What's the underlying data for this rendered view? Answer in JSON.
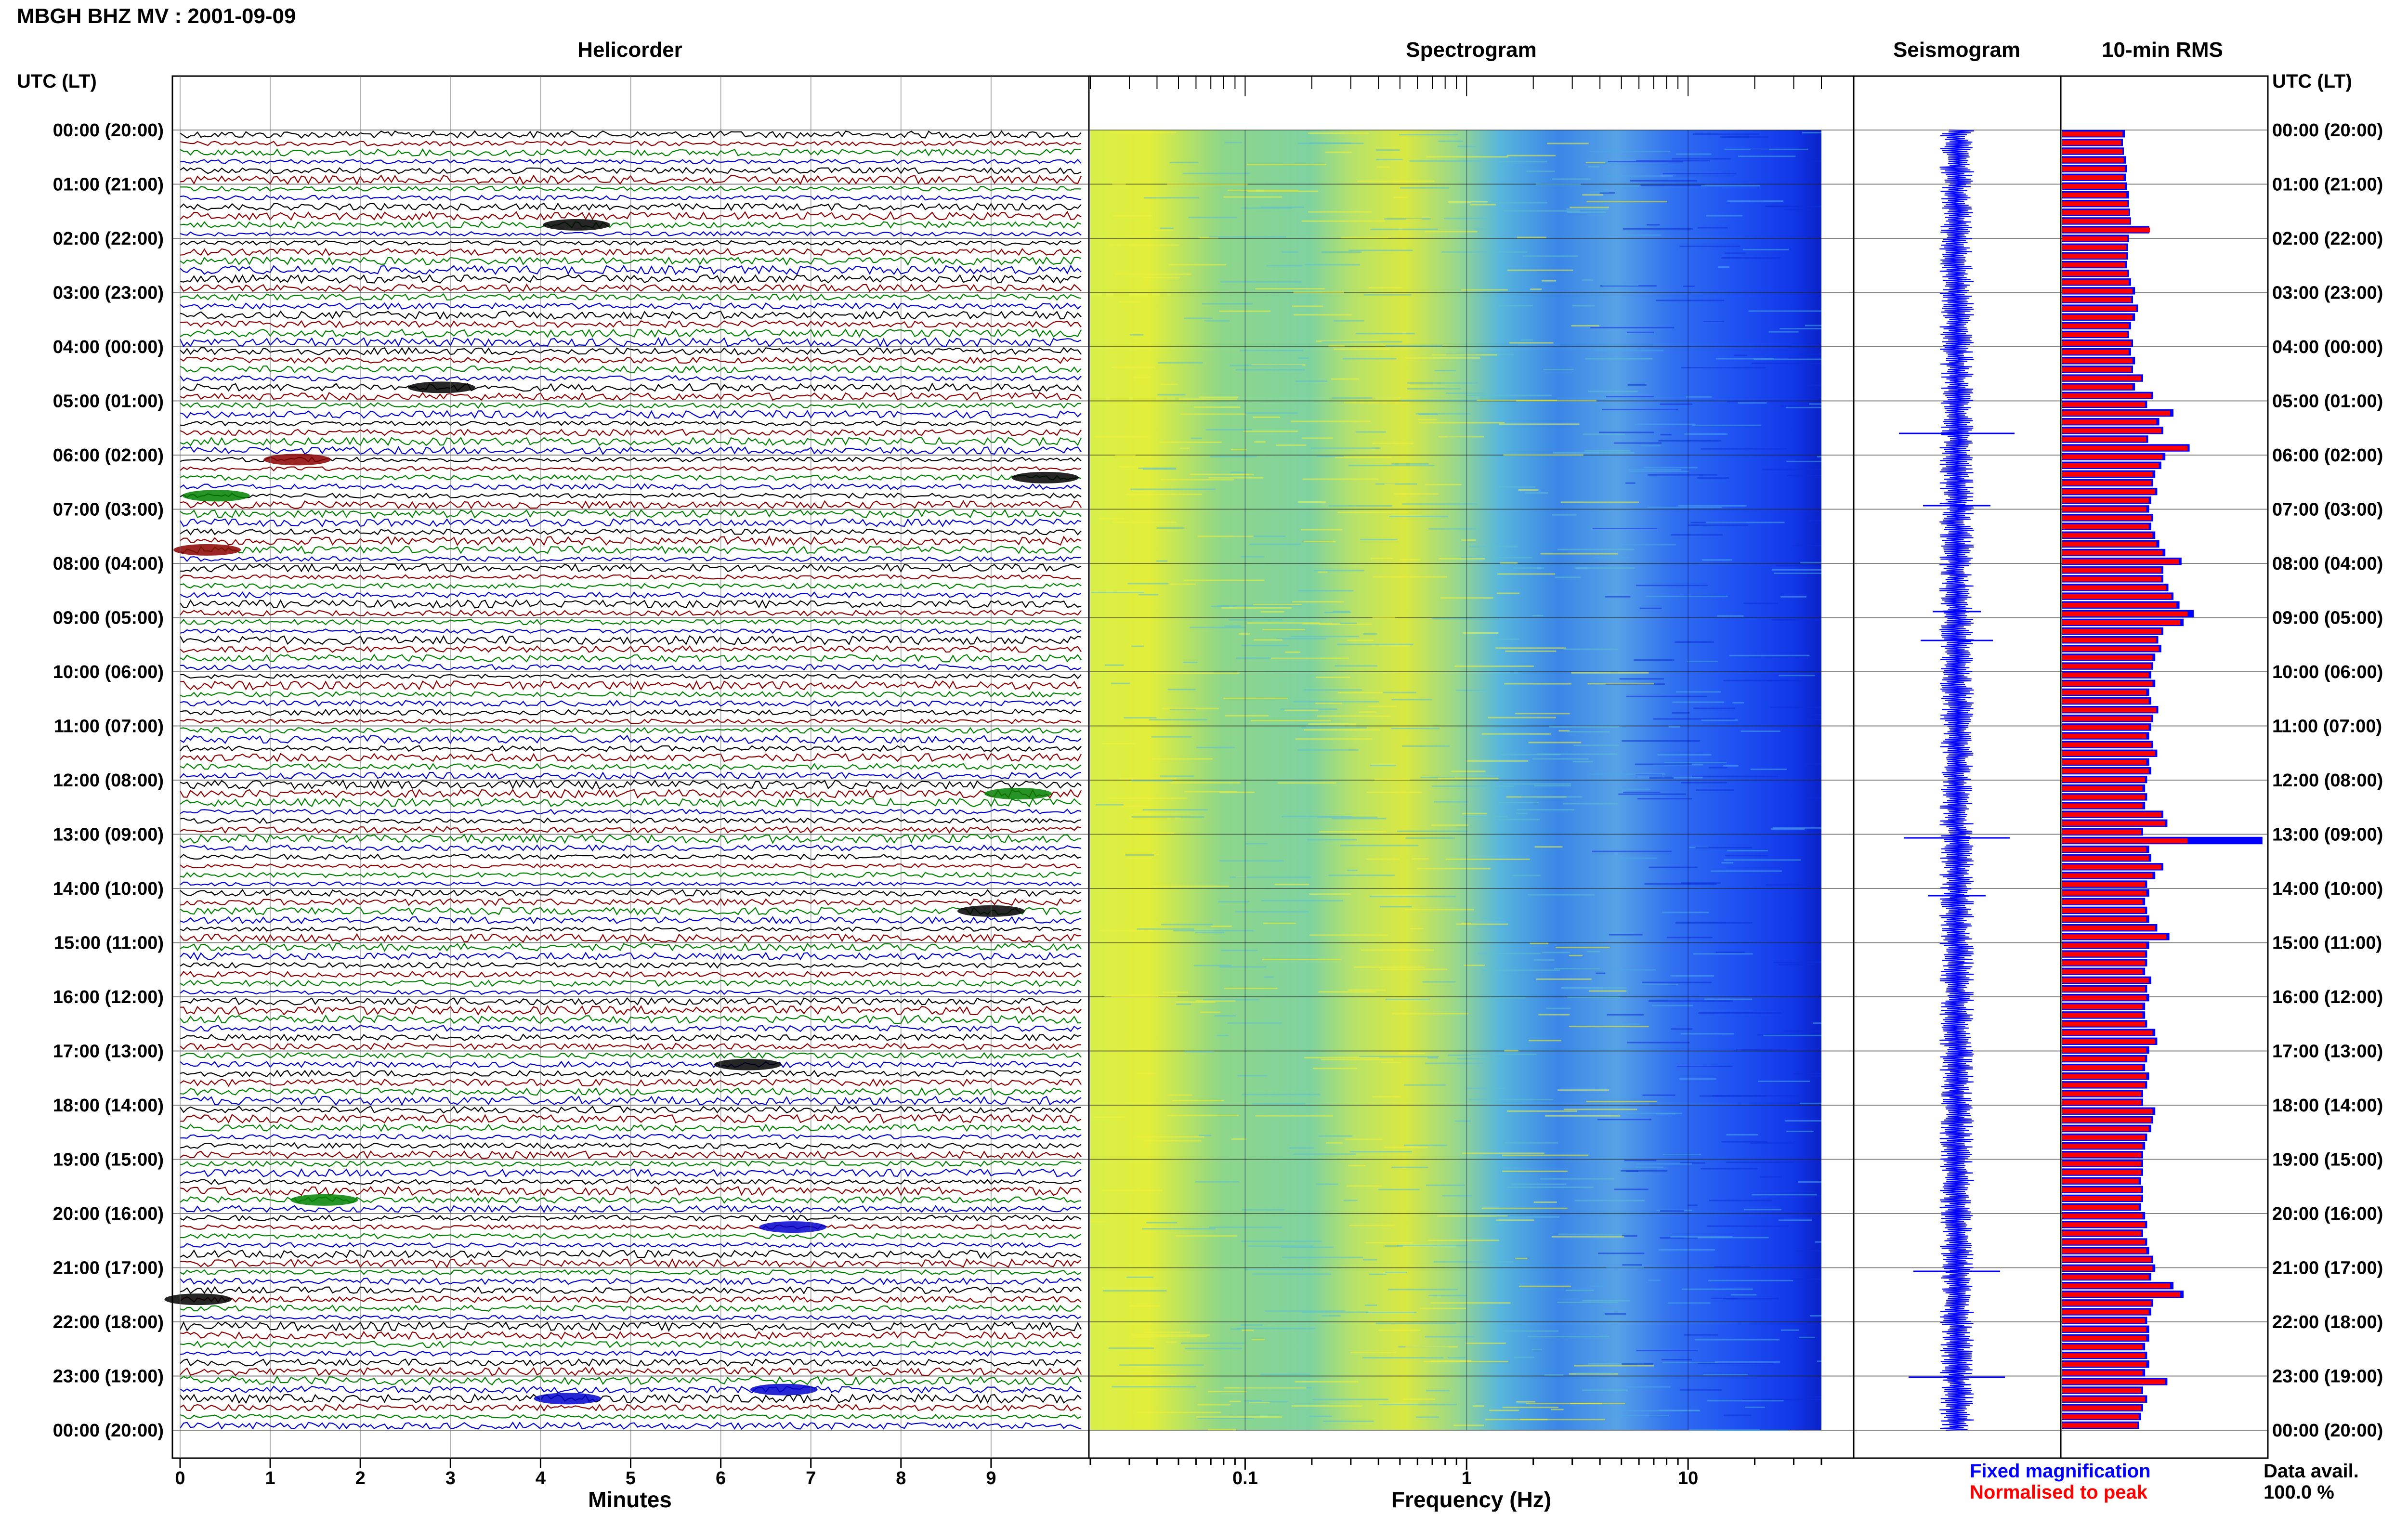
{
  "title": "MBGH BHZ MV : 2001-09-09",
  "panels": {
    "helicorder": "Helicorder",
    "spectrogram": "Spectrogram",
    "seismogram": "Seismogram",
    "rms": "10-min RMS"
  },
  "axis": {
    "left_header": "UTC (LT)",
    "right_header": "UTC (LT)",
    "minutes_label": "Minutes",
    "frequency_label": "Frequency (Hz)"
  },
  "legend": {
    "fixed": "Fixed magnification",
    "normalised": "Normalised to peak",
    "fixed_color": "#0000ff",
    "normalised_color": "#ff0000"
  },
  "data_avail": {
    "label": "Data avail.",
    "value": "100.0 %"
  },
  "colors": {
    "trace_cycle": [
      "#000000",
      "#8b0000",
      "#008000",
      "#0000cd"
    ]
  },
  "chart_data": {
    "type": "heatmap",
    "time_labels": [
      "00:00 (20:00)",
      "01:00 (21:00)",
      "02:00 (22:00)",
      "03:00 (23:00)",
      "04:00 (00:00)",
      "05:00 (01:00)",
      "06:00 (02:00)",
      "07:00 (03:00)",
      "08:00 (04:00)",
      "09:00 (05:00)",
      "10:00 (06:00)",
      "11:00 (07:00)",
      "12:00 (08:00)",
      "13:00 (09:00)",
      "14:00 (10:00)",
      "15:00 (11:00)",
      "16:00 (12:00)",
      "17:00 (13:00)",
      "18:00 (14:00)",
      "19:00 (15:00)",
      "20:00 (16:00)",
      "21:00 (17:00)",
      "22:00 (18:00)",
      "23:00 (19:00)",
      "00:00 (20:00)"
    ],
    "minutes_ticks": [
      "0",
      "1",
      "2",
      "3",
      "4",
      "5",
      "6",
      "7",
      "8",
      "9"
    ],
    "freq_ticks": [
      "0.1",
      "1",
      "10"
    ],
    "freq_range": [
      0.02,
      40
    ],
    "rms_fixed": [
      0.62,
      0.6,
      0.61,
      0.63,
      0.64,
      0.63,
      0.64,
      0.66,
      0.66,
      0.67,
      0.68,
      0.86,
      0.66,
      0.65,
      0.65,
      0.64,
      0.66,
      0.68,
      0.72,
      0.7,
      0.75,
      0.72,
      0.68,
      0.66,
      0.7,
      0.68,
      0.72,
      0.7,
      0.8,
      0.72,
      0.9,
      0.84,
      1.1,
      0.96,
      1.0,
      0.85,
      1.26,
      1.02,
      0.98,
      0.92,
      0.9,
      0.94,
      0.88,
      0.86,
      0.9,
      0.88,
      0.92,
      0.96,
      1.02,
      1.18,
      1.0,
      1.0,
      1.05,
      1.1,
      1.16,
      1.3,
      1.2,
      1.0,
      0.95,
      0.98,
      0.92,
      0.9,
      0.88,
      0.92,
      0.86,
      0.88,
      0.95,
      0.9,
      0.88,
      0.86,
      0.9,
      0.94,
      0.86,
      0.88,
      0.84,
      0.82,
      0.84,
      0.82,
      1.0,
      1.04,
      0.8,
      1.98,
      0.86,
      0.88,
      1.0,
      0.92,
      0.84,
      0.86,
      0.82,
      0.84,
      0.86,
      0.94,
      1.06,
      0.86,
      0.84,
      0.84,
      0.82,
      0.88,
      0.84,
      0.86,
      0.82,
      0.82,
      0.84,
      0.92,
      0.94,
      0.86,
      0.84,
      0.82,
      0.86,
      0.84,
      0.8,
      0.8,
      0.92,
      0.9,
      0.88,
      0.84,
      0.82,
      0.8,
      0.8,
      0.8,
      0.78,
      0.8,
      0.8,
      0.78,
      0.82,
      0.84,
      0.8,
      0.84,
      0.86,
      0.9,
      0.92,
      0.88,
      1.1,
      1.2,
      0.9,
      0.88,
      0.84,
      0.86,
      0.86,
      0.82,
      0.84,
      0.86,
      0.82,
      1.04,
      0.8,
      0.84,
      0.8,
      0.78,
      0.76
    ],
    "rms_normalised": [
      0.48,
      0.47,
      0.48,
      0.49,
      0.5,
      0.49,
      0.5,
      0.51,
      0.52,
      0.53,
      0.54,
      0.7,
      0.52,
      0.51,
      0.51,
      0.5,
      0.52,
      0.53,
      0.56,
      0.55,
      0.59,
      0.56,
      0.53,
      0.52,
      0.55,
      0.53,
      0.56,
      0.55,
      0.63,
      0.56,
      0.71,
      0.66,
      0.86,
      0.75,
      0.79,
      0.67,
      1.0,
      0.8,
      0.77,
      0.72,
      0.71,
      0.74,
      0.69,
      0.67,
      0.71,
      0.69,
      0.72,
      0.75,
      0.8,
      0.93,
      0.79,
      0.79,
      0.83,
      0.87,
      0.91,
      1.0,
      0.94,
      0.79,
      0.75,
      0.77,
      0.72,
      0.71,
      0.69,
      0.72,
      0.67,
      0.69,
      0.75,
      0.71,
      0.69,
      0.67,
      0.71,
      0.74,
      0.67,
      0.69,
      0.66,
      0.64,
      0.66,
      0.64,
      0.79,
      0.82,
      0.63,
      1.0,
      0.67,
      0.69,
      0.79,
      0.72,
      0.66,
      0.67,
      0.64,
      0.66,
      0.67,
      0.74,
      0.83,
      0.67,
      0.66,
      0.66,
      0.64,
      0.69,
      0.66,
      0.67,
      0.64,
      0.64,
      0.66,
      0.72,
      0.74,
      0.67,
      0.66,
      0.64,
      0.67,
      0.66,
      0.63,
      0.63,
      0.72,
      0.71,
      0.69,
      0.66,
      0.64,
      0.63,
      0.63,
      0.63,
      0.61,
      0.63,
      0.63,
      0.61,
      0.64,
      0.66,
      0.63,
      0.66,
      0.67,
      0.71,
      0.72,
      0.69,
      0.86,
      0.94,
      0.71,
      0.69,
      0.66,
      0.67,
      0.67,
      0.64,
      0.66,
      0.67,
      0.64,
      0.82,
      0.63,
      0.66,
      0.63,
      0.61,
      0.6
    ]
  }
}
